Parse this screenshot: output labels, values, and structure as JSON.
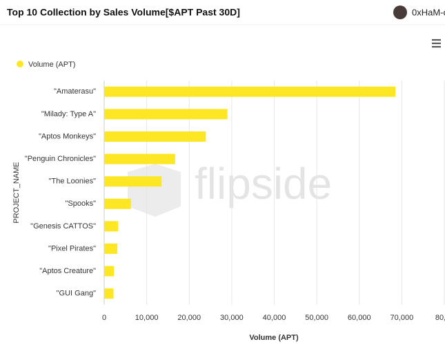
{
  "header": {
    "title": "Top 10 Collection by Sales Volume[$APT Past 30D]",
    "user": "0xHaM-c"
  },
  "chart_data": {
    "type": "bar",
    "orientation": "horizontal",
    "watermark": "flipside",
    "categories": [
      "\"Amaterasu\"",
      "\"Milady: Type A\"",
      "\"Aptos Monkeys\"",
      "\"Penguin Chronicles\"",
      "\"The Loonies\"",
      "\"Spooks\"",
      "\"Genesis CATTOS\"",
      "\"Pixel Pirates\"",
      "\"Aptos Creature\"",
      "\"GUI Gang\""
    ],
    "series": [
      {
        "name": "Volume (APT)",
        "color": "#fde725",
        "values": [
          68500,
          29000,
          23900,
          16700,
          13500,
          6300,
          3250,
          3100,
          2300,
          2200
        ]
      }
    ],
    "xlabel": "Volume (APT)",
    "ylabel": "PROJECT_NAME",
    "xlim": [
      0,
      80000
    ],
    "xticks": [
      0,
      {
        "value": 10000,
        "label": "10,000"
      },
      {
        "value": 20000,
        "label": "20,000"
      },
      {
        "value": 30000,
        "label": "30,000"
      },
      {
        "value": 40000,
        "label": "40,000"
      },
      {
        "value": 50000,
        "label": "50,000"
      },
      {
        "value": 60000,
        "label": "60,000"
      },
      {
        "value": 70000,
        "label": "70,000"
      },
      {
        "value": 80000,
        "label": "80,…"
      }
    ],
    "grid": true,
    "legend": "top-left"
  }
}
